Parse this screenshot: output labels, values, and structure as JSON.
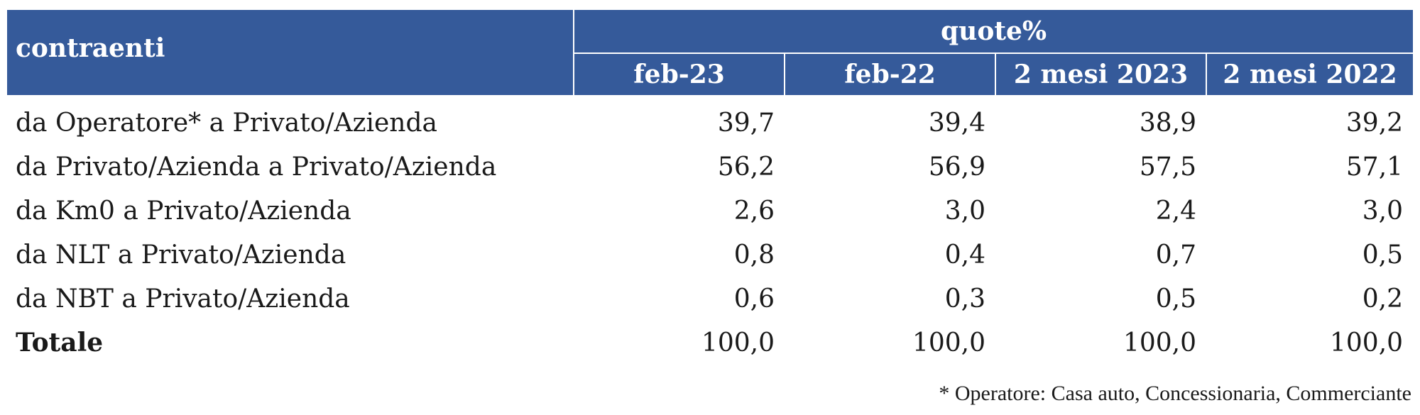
{
  "table": {
    "corner_label": "contraenti",
    "group_label": "quote%",
    "columns": [
      "feb-23",
      "feb-22",
      "2 mesi 2023",
      "2 mesi 2022"
    ],
    "rows": [
      {
        "label": "da Operatore* a Privato/Azienda",
        "values": [
          "39,7",
          "39,4",
          "38,9",
          "39,2"
        ]
      },
      {
        "label": "da Privato/Azienda a Privato/Azienda",
        "values": [
          "56,2",
          "56,9",
          "57,5",
          "57,1"
        ]
      },
      {
        "label": "da Km0 a Privato/Azienda",
        "values": [
          "2,6",
          "3,0",
          "2,4",
          "3,0"
        ]
      },
      {
        "label": "da NLT a Privato/Azienda",
        "values": [
          "0,8",
          "0,4",
          "0,7",
          "0,5"
        ]
      },
      {
        "label": "da NBT a Privato/Azienda",
        "values": [
          "0,6",
          "0,3",
          "0,5",
          "0,2"
        ]
      }
    ],
    "total": {
      "label": "Totale",
      "values": [
        "100,0",
        "100,0",
        "100,0",
        "100,0"
      ]
    }
  },
  "footnote": "* Operatore: Casa auto, Concessionaria, Commerciante",
  "colors": {
    "header_bg": "#355a9a",
    "header_text": "#ffffff",
    "body_text": "#1a1a1a"
  }
}
